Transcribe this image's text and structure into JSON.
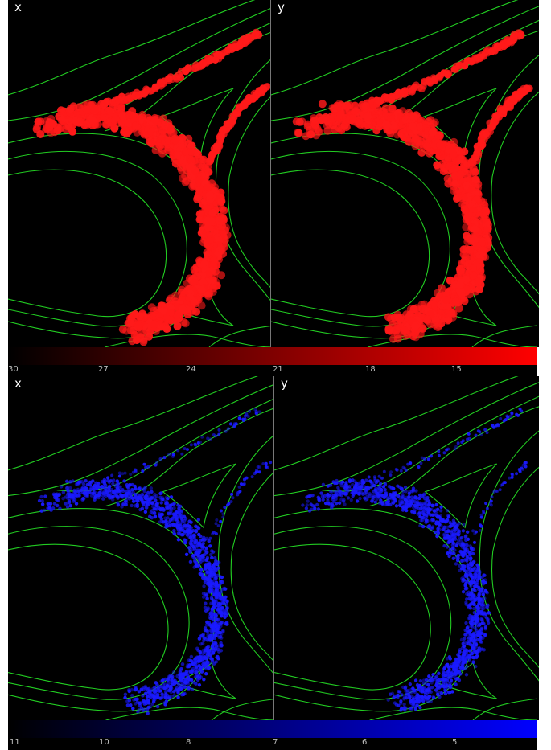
{
  "top": {
    "left_label": "x",
    "right_label": "y",
    "color": "#ff1a1a",
    "colorbar": {
      "from": "#000000",
      "to": "#ff0000",
      "ticks": [
        "30",
        "27",
        "24",
        "21",
        "18",
        "15"
      ]
    }
  },
  "bottom": {
    "left_label": "x",
    "right_label": "y",
    "color": "#1a1aff",
    "colorbar": {
      "from": "#000000",
      "to": "#0000ff",
      "ticks": [
        "11",
        "10",
        "8",
        "7",
        "6",
        "5"
      ]
    }
  },
  "road_color": "#22cc22"
}
